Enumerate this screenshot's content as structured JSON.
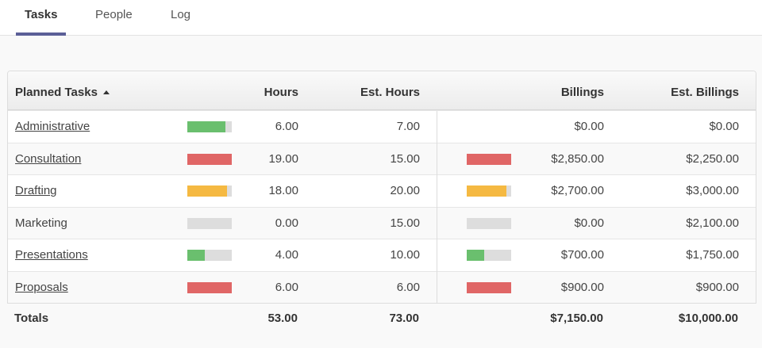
{
  "tabs": [
    "Tasks",
    "People",
    "Log"
  ],
  "active_tab": 0,
  "table": {
    "headers": {
      "task": "Planned Tasks",
      "hours": "Hours",
      "est_hours": "Est. Hours",
      "billings": "Billings",
      "est_billings": "Est. Billings"
    },
    "rows": [
      {
        "task": "Administrative",
        "link": true,
        "hours": "6.00",
        "est_hours": "7.00",
        "billings": "$0.00",
        "est_billings": "$0.00"
      },
      {
        "task": "Consultation",
        "link": true,
        "hours": "19.00",
        "est_hours": "15.00",
        "billings": "$2,850.00",
        "est_billings": "$2,250.00"
      },
      {
        "task": "Drafting",
        "link": true,
        "hours": "18.00",
        "est_hours": "20.00",
        "billings": "$2,700.00",
        "est_billings": "$3,000.00"
      },
      {
        "task": "Marketing",
        "link": false,
        "hours": "0.00",
        "est_hours": "15.00",
        "billings": "$0.00",
        "est_billings": "$2,100.00"
      },
      {
        "task": "Presentations",
        "link": true,
        "hours": "4.00",
        "est_hours": "10.00",
        "billings": "$700.00",
        "est_billings": "$1,750.00"
      },
      {
        "task": "Proposals",
        "link": true,
        "hours": "6.00",
        "est_hours": "6.00",
        "billings": "$900.00",
        "est_billings": "$900.00"
      }
    ],
    "totals": {
      "label": "Totals",
      "hours": "53.00",
      "est_hours": "73.00",
      "billings": "$7,150.00",
      "est_billings": "$10,000.00"
    },
    "bar_colors": {
      "under": "#6abf6e",
      "near": "#f5b942",
      "over": "#e06666",
      "empty": "#dddddd"
    }
  }
}
